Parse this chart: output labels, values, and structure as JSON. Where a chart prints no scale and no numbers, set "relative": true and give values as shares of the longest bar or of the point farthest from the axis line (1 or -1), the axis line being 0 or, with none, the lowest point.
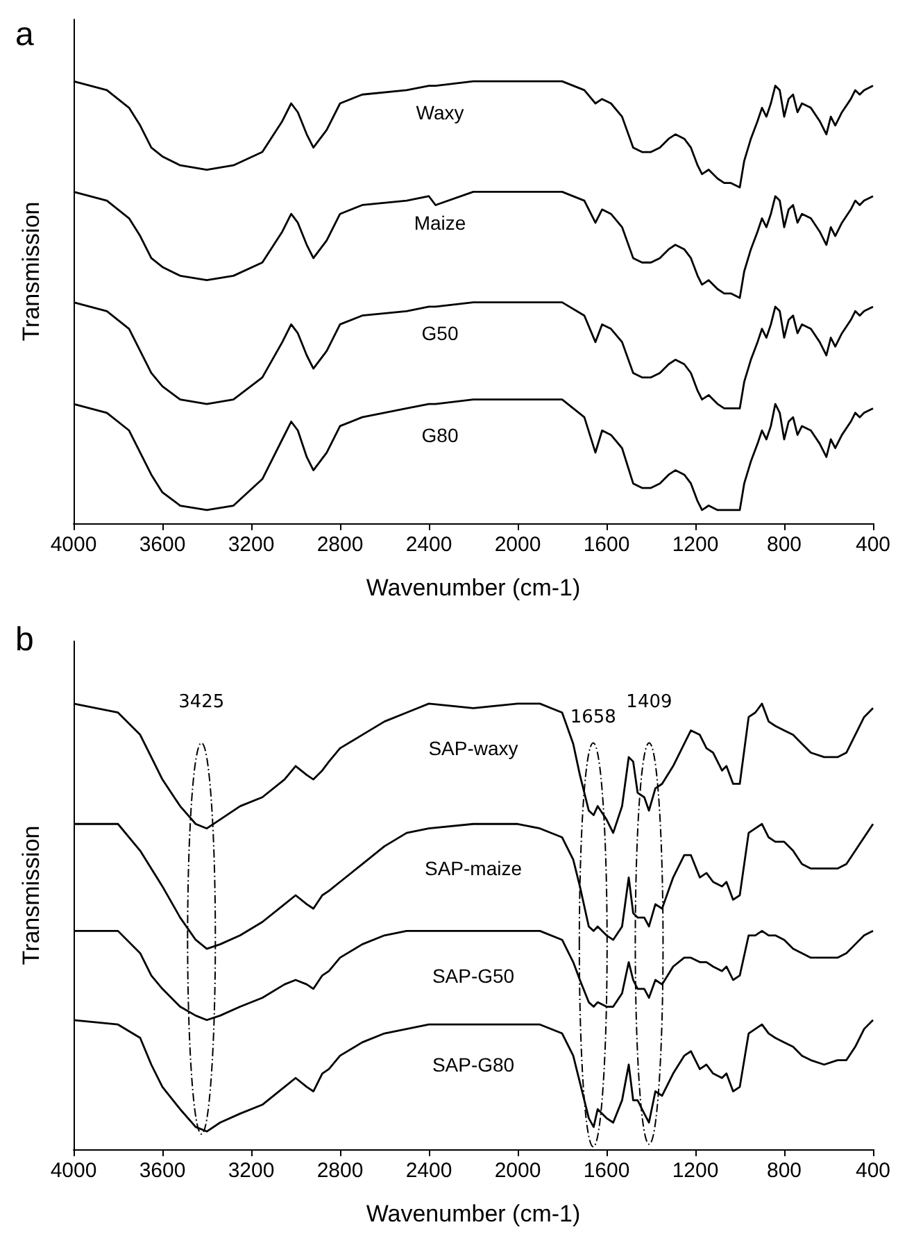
{
  "chart_data": [
    {
      "type": "line",
      "title": "a",
      "xlabel": "Wavenumber (cm-1)",
      "ylabel": "Transmission",
      "relative": true,
      "xlim": [
        4000,
        400
      ],
      "xticks": [
        4000,
        3600,
        3200,
        2800,
        2400,
        2000,
        1600,
        1200,
        800,
        400
      ],
      "x": [
        4000,
        3850,
        3750,
        3700,
        3650,
        3600,
        3520,
        3400,
        3280,
        3150,
        3060,
        3020,
        2990,
        2950,
        2920,
        2890,
        2860,
        2800,
        2700,
        2500,
        2400,
        2370,
        2200,
        2000,
        1800,
        1700,
        1650,
        1620,
        1580,
        1530,
        1480,
        1440,
        1400,
        1360,
        1320,
        1290,
        1250,
        1220,
        1190,
        1170,
        1140,
        1100,
        1070,
        1040,
        1000,
        980,
        950,
        920,
        900,
        880,
        860,
        840,
        820,
        800,
        780,
        760,
        740,
        720,
        680,
        640,
        610,
        590,
        570,
        540,
        500,
        480,
        460,
        440,
        400
      ],
      "series": [
        {
          "name": "Waxy",
          "color": "#000000",
          "values": [
            1.0,
            0.98,
            0.94,
            0.9,
            0.85,
            0.83,
            0.81,
            0.8,
            0.81,
            0.84,
            0.91,
            0.95,
            0.93,
            0.88,
            0.85,
            0.87,
            0.89,
            0.95,
            0.97,
            0.98,
            0.99,
            0.99,
            1.0,
            1.0,
            1.0,
            0.98,
            0.95,
            0.96,
            0.95,
            0.92,
            0.85,
            0.84,
            0.84,
            0.85,
            0.87,
            0.88,
            0.87,
            0.85,
            0.81,
            0.79,
            0.8,
            0.78,
            0.77,
            0.77,
            0.76,
            0.82,
            0.87,
            0.91,
            0.94,
            0.92,
            0.95,
            0.99,
            0.98,
            0.92,
            0.96,
            0.97,
            0.93,
            0.95,
            0.94,
            0.91,
            0.88,
            0.92,
            0.9,
            0.93,
            0.96,
            0.98,
            0.97,
            0.98,
            0.99
          ]
        },
        {
          "name": "Maize",
          "color": "#000000",
          "values": [
            0.75,
            0.73,
            0.69,
            0.65,
            0.6,
            0.58,
            0.56,
            0.55,
            0.56,
            0.59,
            0.66,
            0.7,
            0.68,
            0.63,
            0.6,
            0.62,
            0.64,
            0.7,
            0.72,
            0.73,
            0.74,
            0.72,
            0.75,
            0.75,
            0.75,
            0.73,
            0.68,
            0.71,
            0.7,
            0.67,
            0.6,
            0.59,
            0.59,
            0.6,
            0.62,
            0.63,
            0.62,
            0.6,
            0.56,
            0.54,
            0.55,
            0.53,
            0.52,
            0.52,
            0.51,
            0.57,
            0.62,
            0.66,
            0.69,
            0.67,
            0.7,
            0.74,
            0.73,
            0.67,
            0.71,
            0.72,
            0.68,
            0.7,
            0.69,
            0.66,
            0.63,
            0.67,
            0.65,
            0.68,
            0.71,
            0.73,
            0.72,
            0.73,
            0.74
          ]
        },
        {
          "name": "G50",
          "color": "#000000",
          "values": [
            0.5,
            0.48,
            0.44,
            0.39,
            0.34,
            0.31,
            0.28,
            0.27,
            0.28,
            0.33,
            0.41,
            0.45,
            0.43,
            0.38,
            0.35,
            0.37,
            0.39,
            0.45,
            0.47,
            0.48,
            0.49,
            0.49,
            0.5,
            0.5,
            0.5,
            0.47,
            0.41,
            0.45,
            0.44,
            0.41,
            0.34,
            0.33,
            0.33,
            0.34,
            0.36,
            0.37,
            0.36,
            0.34,
            0.3,
            0.28,
            0.29,
            0.27,
            0.26,
            0.26,
            0.26,
            0.32,
            0.37,
            0.41,
            0.44,
            0.42,
            0.45,
            0.49,
            0.48,
            0.42,
            0.46,
            0.47,
            0.43,
            0.45,
            0.44,
            0.41,
            0.38,
            0.42,
            0.4,
            0.43,
            0.46,
            0.48,
            0.47,
            0.48,
            0.49
          ]
        },
        {
          "name": "G80",
          "color": "#000000",
          "values": [
            0.27,
            0.25,
            0.21,
            0.16,
            0.11,
            0.07,
            0.04,
            0.03,
            0.04,
            0.1,
            0.19,
            0.23,
            0.21,
            0.15,
            0.12,
            0.14,
            0.16,
            0.22,
            0.24,
            0.26,
            0.27,
            0.27,
            0.28,
            0.28,
            0.28,
            0.24,
            0.16,
            0.21,
            0.2,
            0.17,
            0.09,
            0.08,
            0.08,
            0.09,
            0.11,
            0.12,
            0.11,
            0.09,
            0.05,
            0.03,
            0.04,
            0.03,
            0.03,
            0.03,
            0.03,
            0.09,
            0.14,
            0.18,
            0.21,
            0.19,
            0.22,
            0.27,
            0.25,
            0.19,
            0.23,
            0.24,
            0.2,
            0.22,
            0.21,
            0.18,
            0.15,
            0.19,
            0.17,
            0.2,
            0.23,
            0.25,
            0.24,
            0.25,
            0.26
          ]
        }
      ]
    },
    {
      "type": "line",
      "title": "b",
      "xlabel": "Wavenumber (cm-1)",
      "ylabel": "Transmission",
      "relative": true,
      "xlim": [
        4000,
        400
      ],
      "xticks": [
        4000,
        3600,
        3200,
        2800,
        2400,
        2000,
        1600,
        1200,
        800,
        400
      ],
      "annotations": [
        "3425",
        "1658",
        "1409"
      ],
      "x": [
        4000,
        3800,
        3700,
        3650,
        3600,
        3520,
        3450,
        3400,
        3340,
        3250,
        3150,
        3050,
        3000,
        2950,
        2920,
        2880,
        2850,
        2800,
        2700,
        2600,
        2500,
        2400,
        2200,
        2000,
        1900,
        1800,
        1750,
        1720,
        1680,
        1658,
        1640,
        1600,
        1570,
        1530,
        1500,
        1480,
        1460,
        1430,
        1409,
        1380,
        1350,
        1300,
        1250,
        1220,
        1180,
        1150,
        1120,
        1080,
        1060,
        1030,
        1000,
        960,
        930,
        900,
        870,
        840,
        800,
        760,
        720,
        680,
        620,
        560,
        520,
        480,
        440,
        400
      ],
      "series": [
        {
          "name": "SAP-waxy",
          "color": "#000000",
          "values": [
            1.0,
            0.98,
            0.93,
            0.88,
            0.83,
            0.77,
            0.73,
            0.72,
            0.74,
            0.77,
            0.79,
            0.83,
            0.86,
            0.84,
            0.83,
            0.85,
            0.87,
            0.9,
            0.93,
            0.96,
            0.98,
            1.0,
            0.99,
            1.0,
            1.0,
            0.98,
            0.91,
            0.84,
            0.76,
            0.75,
            0.77,
            0.74,
            0.71,
            0.77,
            0.88,
            0.87,
            0.8,
            0.79,
            0.76,
            0.81,
            0.82,
            0.86,
            0.91,
            0.94,
            0.93,
            0.9,
            0.89,
            0.85,
            0.86,
            0.82,
            0.82,
            0.97,
            0.98,
            1.0,
            0.96,
            0.95,
            0.94,
            0.93,
            0.91,
            0.89,
            0.88,
            0.88,
            0.89,
            0.93,
            0.97,
            0.99
          ]
        },
        {
          "name": "SAP-maize",
          "color": "#000000",
          "values": [
            0.73,
            0.73,
            0.67,
            0.63,
            0.59,
            0.52,
            0.47,
            0.45,
            0.46,
            0.48,
            0.51,
            0.55,
            0.57,
            0.55,
            0.54,
            0.57,
            0.58,
            0.6,
            0.64,
            0.68,
            0.71,
            0.72,
            0.73,
            0.73,
            0.72,
            0.7,
            0.65,
            0.59,
            0.5,
            0.49,
            0.5,
            0.48,
            0.47,
            0.5,
            0.61,
            0.53,
            0.52,
            0.52,
            0.5,
            0.55,
            0.54,
            0.61,
            0.66,
            0.66,
            0.61,
            0.62,
            0.6,
            0.59,
            0.6,
            0.56,
            0.57,
            0.71,
            0.72,
            0.73,
            0.7,
            0.69,
            0.69,
            0.67,
            0.64,
            0.63,
            0.63,
            0.63,
            0.64,
            0.67,
            0.7,
            0.73
          ]
        },
        {
          "name": "SAP-G50",
          "color": "#000000",
          "values": [
            0.49,
            0.49,
            0.44,
            0.39,
            0.36,
            0.32,
            0.3,
            0.29,
            0.3,
            0.32,
            0.34,
            0.37,
            0.38,
            0.37,
            0.36,
            0.39,
            0.4,
            0.43,
            0.46,
            0.48,
            0.49,
            0.49,
            0.49,
            0.49,
            0.49,
            0.47,
            0.42,
            0.38,
            0.33,
            0.32,
            0.33,
            0.32,
            0.32,
            0.35,
            0.42,
            0.38,
            0.36,
            0.36,
            0.34,
            0.38,
            0.37,
            0.41,
            0.43,
            0.43,
            0.42,
            0.42,
            0.41,
            0.4,
            0.41,
            0.38,
            0.39,
            0.48,
            0.48,
            0.49,
            0.48,
            0.48,
            0.47,
            0.45,
            0.44,
            0.43,
            0.43,
            0.43,
            0.44,
            0.46,
            0.48,
            0.49
          ]
        },
        {
          "name": "SAP-G80",
          "color": "#000000",
          "values": [
            0.29,
            0.28,
            0.25,
            0.19,
            0.14,
            0.09,
            0.05,
            0.04,
            0.06,
            0.08,
            0.1,
            0.14,
            0.16,
            0.14,
            0.13,
            0.17,
            0.18,
            0.21,
            0.24,
            0.26,
            0.27,
            0.28,
            0.28,
            0.28,
            0.28,
            0.26,
            0.21,
            0.15,
            0.07,
            0.05,
            0.09,
            0.07,
            0.06,
            0.11,
            0.19,
            0.11,
            0.11,
            0.08,
            0.06,
            0.13,
            0.12,
            0.17,
            0.21,
            0.22,
            0.18,
            0.19,
            0.17,
            0.16,
            0.17,
            0.13,
            0.14,
            0.26,
            0.27,
            0.28,
            0.26,
            0.25,
            0.24,
            0.23,
            0.21,
            0.2,
            0.19,
            0.2,
            0.2,
            0.23,
            0.27,
            0.29
          ]
        }
      ]
    }
  ]
}
